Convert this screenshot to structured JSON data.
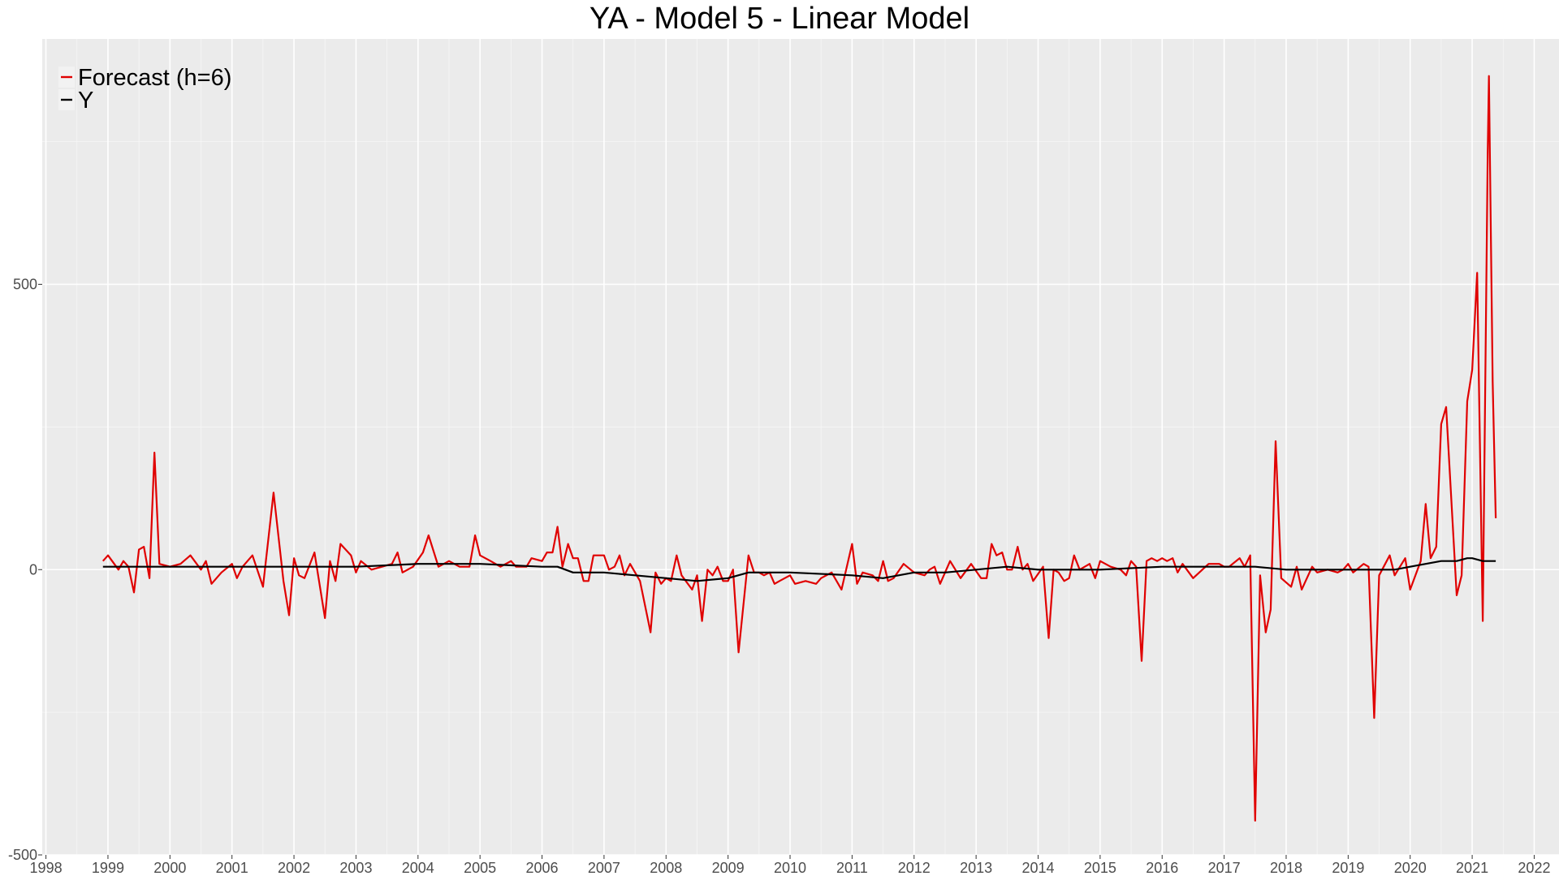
{
  "chart_data": {
    "type": "line",
    "title": "YA - Model 5 - Linear Model",
    "xlabel": "",
    "ylabel": "",
    "xlim": [
      1997.94,
      2022.4
    ],
    "ylim": [
      -500,
      930
    ],
    "y_ticks": [
      -500,
      0,
      500
    ],
    "x_ticks": [
      1998,
      1999,
      2000,
      2001,
      2002,
      2003,
      2004,
      2005,
      2006,
      2007,
      2008,
      2009,
      2010,
      2011,
      2012,
      2013,
      2014,
      2015,
      2016,
      2017,
      2018,
      2019,
      2020,
      2021,
      2022
    ],
    "grid": true,
    "legend_position": "top-left",
    "series": [
      {
        "name": "Forecast (h=6)",
        "color": "#e00000",
        "points": [
          [
            1998.92,
            15
          ],
          [
            1999.0,
            25
          ],
          [
            1999.17,
            0
          ],
          [
            1999.25,
            15
          ],
          [
            1999.33,
            5
          ],
          [
            1999.42,
            -40
          ],
          [
            1999.5,
            35
          ],
          [
            1999.58,
            40
          ],
          [
            1999.67,
            -15
          ],
          [
            1999.75,
            205
          ],
          [
            1999.83,
            10
          ],
          [
            2000.0,
            5
          ],
          [
            2000.17,
            10
          ],
          [
            2000.33,
            25
          ],
          [
            2000.5,
            0
          ],
          [
            2000.58,
            15
          ],
          [
            2000.67,
            -25
          ],
          [
            2000.83,
            -5
          ],
          [
            2001.0,
            10
          ],
          [
            2001.08,
            -15
          ],
          [
            2001.17,
            5
          ],
          [
            2001.33,
            25
          ],
          [
            2001.5,
            -30
          ],
          [
            2001.67,
            135
          ],
          [
            2001.83,
            -20
          ],
          [
            2001.92,
            -80
          ],
          [
            2002.0,
            20
          ],
          [
            2002.08,
            -10
          ],
          [
            2002.17,
            -15
          ],
          [
            2002.33,
            30
          ],
          [
            2002.5,
            -85
          ],
          [
            2002.58,
            15
          ],
          [
            2002.67,
            -20
          ],
          [
            2002.75,
            45
          ],
          [
            2002.92,
            25
          ],
          [
            2003.0,
            -5
          ],
          [
            2003.08,
            15
          ],
          [
            2003.25,
            0
          ],
          [
            2003.42,
            5
          ],
          [
            2003.58,
            10
          ],
          [
            2003.67,
            30
          ],
          [
            2003.75,
            -5
          ],
          [
            2003.92,
            5
          ],
          [
            2004.08,
            30
          ],
          [
            2004.17,
            60
          ],
          [
            2004.33,
            5
          ],
          [
            2004.5,
            15
          ],
          [
            2004.67,
            5
          ],
          [
            2004.83,
            5
          ],
          [
            2004.92,
            60
          ],
          [
            2005.0,
            25
          ],
          [
            2005.17,
            15
          ],
          [
            2005.33,
            5
          ],
          [
            2005.5,
            15
          ],
          [
            2005.58,
            5
          ],
          [
            2005.75,
            5
          ],
          [
            2005.83,
            20
          ],
          [
            2006.0,
            15
          ],
          [
            2006.08,
            30
          ],
          [
            2006.17,
            30
          ],
          [
            2006.25,
            75
          ],
          [
            2006.33,
            5
          ],
          [
            2006.42,
            45
          ],
          [
            2006.5,
            20
          ],
          [
            2006.58,
            20
          ],
          [
            2006.67,
            -20
          ],
          [
            2006.75,
            -20
          ],
          [
            2006.83,
            25
          ],
          [
            2007.0,
            25
          ],
          [
            2007.08,
            0
          ],
          [
            2007.17,
            5
          ],
          [
            2007.25,
            25
          ],
          [
            2007.33,
            -10
          ],
          [
            2007.42,
            10
          ],
          [
            2007.58,
            -20
          ],
          [
            2007.75,
            -110
          ],
          [
            2007.83,
            -5
          ],
          [
            2007.92,
            -25
          ],
          [
            2008.0,
            -15
          ],
          [
            2008.08,
            -20
          ],
          [
            2008.17,
            25
          ],
          [
            2008.25,
            -10
          ],
          [
            2008.42,
            -35
          ],
          [
            2008.5,
            -10
          ],
          [
            2008.58,
            -90
          ],
          [
            2008.67,
            0
          ],
          [
            2008.75,
            -10
          ],
          [
            2008.83,
            5
          ],
          [
            2008.92,
            -20
          ],
          [
            2009.0,
            -20
          ],
          [
            2009.08,
            0
          ],
          [
            2009.17,
            -145
          ],
          [
            2009.33,
            25
          ],
          [
            2009.42,
            -5
          ],
          [
            2009.5,
            -5
          ],
          [
            2009.58,
            -10
          ],
          [
            2009.67,
            -5
          ],
          [
            2009.75,
            -25
          ],
          [
            2009.83,
            -20
          ],
          [
            2010.0,
            -10
          ],
          [
            2010.08,
            -25
          ],
          [
            2010.25,
            -20
          ],
          [
            2010.42,
            -25
          ],
          [
            2010.5,
            -15
          ],
          [
            2010.67,
            -5
          ],
          [
            2010.75,
            -20
          ],
          [
            2010.83,
            -35
          ],
          [
            2011.0,
            45
          ],
          [
            2011.08,
            -25
          ],
          [
            2011.17,
            -5
          ],
          [
            2011.33,
            -10
          ],
          [
            2011.42,
            -20
          ],
          [
            2011.5,
            15
          ],
          [
            2011.58,
            -20
          ],
          [
            2011.67,
            -15
          ],
          [
            2011.83,
            10
          ],
          [
            2012.0,
            -5
          ],
          [
            2012.17,
            -10
          ],
          [
            2012.25,
            0
          ],
          [
            2012.33,
            5
          ],
          [
            2012.42,
            -25
          ],
          [
            2012.58,
            15
          ],
          [
            2012.75,
            -15
          ],
          [
            2012.92,
            10
          ],
          [
            2013.08,
            -15
          ],
          [
            2013.17,
            -15
          ],
          [
            2013.25,
            45
          ],
          [
            2013.33,
            25
          ],
          [
            2013.42,
            30
          ],
          [
            2013.5,
            0
          ],
          [
            2013.58,
            0
          ],
          [
            2013.67,
            40
          ],
          [
            2013.75,
            0
          ],
          [
            2013.83,
            10
          ],
          [
            2013.92,
            -20
          ],
          [
            2014.08,
            5
          ],
          [
            2014.17,
            -120
          ],
          [
            2014.25,
            0
          ],
          [
            2014.33,
            -5
          ],
          [
            2014.42,
            -20
          ],
          [
            2014.5,
            -15
          ],
          [
            2014.58,
            25
          ],
          [
            2014.67,
            0
          ],
          [
            2014.83,
            10
          ],
          [
            2014.92,
            -15
          ],
          [
            2015.0,
            15
          ],
          [
            2015.17,
            5
          ],
          [
            2015.33,
            0
          ],
          [
            2015.42,
            -10
          ],
          [
            2015.5,
            15
          ],
          [
            2015.58,
            5
          ],
          [
            2015.67,
            -160
          ],
          [
            2015.75,
            15
          ],
          [
            2015.83,
            20
          ],
          [
            2015.92,
            15
          ],
          [
            2016.0,
            20
          ],
          [
            2016.08,
            15
          ],
          [
            2016.17,
            20
          ],
          [
            2016.25,
            -5
          ],
          [
            2016.33,
            10
          ],
          [
            2016.5,
            -15
          ],
          [
            2016.75,
            10
          ],
          [
            2016.92,
            10
          ],
          [
            2017.0,
            5
          ],
          [
            2017.08,
            5
          ],
          [
            2017.25,
            20
          ],
          [
            2017.33,
            5
          ],
          [
            2017.42,
            25
          ],
          [
            2017.5,
            -440
          ],
          [
            2017.58,
            -10
          ],
          [
            2017.67,
            -110
          ],
          [
            2017.75,
            -70
          ],
          [
            2017.83,
            225
          ],
          [
            2017.92,
            -15
          ],
          [
            2018.08,
            -30
          ],
          [
            2018.17,
            5
          ],
          [
            2018.25,
            -35
          ],
          [
            2018.42,
            5
          ],
          [
            2018.5,
            -5
          ],
          [
            2018.67,
            0
          ],
          [
            2018.83,
            -5
          ],
          [
            2018.92,
            0
          ],
          [
            2019.0,
            10
          ],
          [
            2019.08,
            -5
          ],
          [
            2019.25,
            10
          ],
          [
            2019.33,
            5
          ],
          [
            2019.42,
            -260
          ],
          [
            2019.5,
            -10
          ],
          [
            2019.67,
            25
          ],
          [
            2019.75,
            -10
          ],
          [
            2019.92,
            20
          ],
          [
            2020.0,
            -35
          ],
          [
            2020.17,
            15
          ],
          [
            2020.25,
            115
          ],
          [
            2020.33,
            20
          ],
          [
            2020.42,
            40
          ],
          [
            2020.5,
            255
          ],
          [
            2020.58,
            285
          ],
          [
            2020.75,
            -45
          ],
          [
            2020.83,
            -10
          ],
          [
            2020.92,
            295
          ],
          [
            2021.0,
            350
          ],
          [
            2021.08,
            520
          ],
          [
            2021.17,
            -90
          ],
          [
            2021.25,
            730
          ],
          [
            2021.27,
            865
          ],
          [
            2021.33,
            330
          ],
          [
            2021.38,
            90
          ]
        ]
      },
      {
        "name": "Y",
        "color": "#000000",
        "points": [
          [
            1998.92,
            5
          ],
          [
            1999.5,
            5
          ],
          [
            2000.5,
            5
          ],
          [
            2001.33,
            5
          ],
          [
            2002.0,
            5
          ],
          [
            2003.0,
            5
          ],
          [
            2004.0,
            10
          ],
          [
            2005.0,
            10
          ],
          [
            2006.0,
            5
          ],
          [
            2006.25,
            5
          ],
          [
            2006.5,
            -5
          ],
          [
            2007.0,
            -5
          ],
          [
            2007.5,
            -10
          ],
          [
            2008.0,
            -15
          ],
          [
            2008.5,
            -20
          ],
          [
            2009.0,
            -15
          ],
          [
            2009.33,
            -5
          ],
          [
            2010.0,
            -5
          ],
          [
            2011.0,
            -10
          ],
          [
            2011.5,
            -15
          ],
          [
            2012.0,
            -5
          ],
          [
            2012.5,
            -5
          ],
          [
            2013.0,
            0
          ],
          [
            2013.5,
            5
          ],
          [
            2014.0,
            0
          ],
          [
            2015.0,
            0
          ],
          [
            2016.0,
            5
          ],
          [
            2017.0,
            5
          ],
          [
            2017.5,
            5
          ],
          [
            2018.0,
            0
          ],
          [
            2019.0,
            0
          ],
          [
            2019.75,
            0
          ],
          [
            2020.0,
            5
          ],
          [
            2020.25,
            10
          ],
          [
            2020.5,
            15
          ],
          [
            2020.75,
            15
          ],
          [
            2020.92,
            20
          ],
          [
            2021.0,
            20
          ],
          [
            2021.17,
            15
          ],
          [
            2021.38,
            15
          ]
        ]
      }
    ]
  }
}
